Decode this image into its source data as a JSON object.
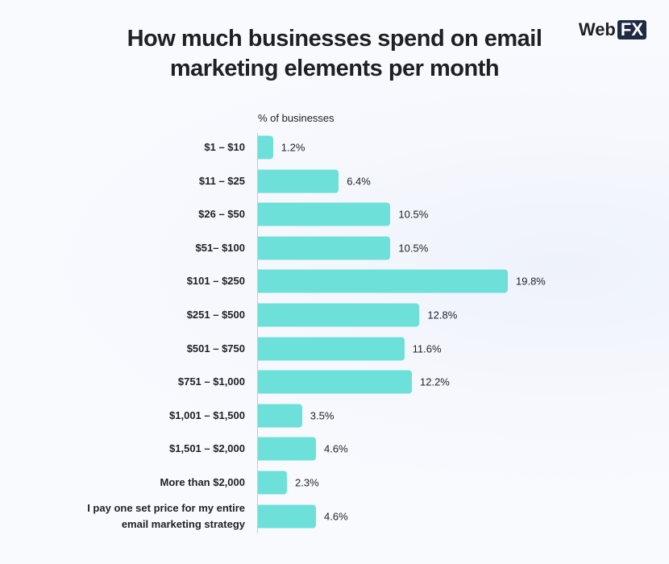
{
  "chart_data": {
    "type": "bar",
    "orientation": "horizontal",
    "title": "How much businesses spend on email marketing elements per month",
    "axis_label": "% of businesses",
    "color": "#6ce0d9",
    "categories": [
      "$1 – $10",
      "$11 – $25",
      "$26 – $50",
      "$51– $100",
      "$101 – $250",
      "$251 – $500",
      "$501 – $750",
      "$751 – $1,000",
      "$1,001 – $1,500",
      "$1,501 – $2,000",
      "More than $2,000",
      "I pay one set price for my entire email marketing strategy"
    ],
    "values": [
      1.2,
      6.4,
      10.5,
      10.5,
      19.8,
      12.8,
      11.6,
      12.2,
      3.5,
      4.6,
      2.3,
      4.6
    ],
    "value_labels": [
      "1.2%",
      "6.4%",
      "10.5%",
      "10.5%",
      "19.8%",
      "12.8%",
      "11.6%",
      "12.2%",
      "3.5%",
      "4.6%",
      "2.3%",
      "4.6%"
    ]
  },
  "logo": {
    "text": "Web",
    "badge": "FX"
  }
}
